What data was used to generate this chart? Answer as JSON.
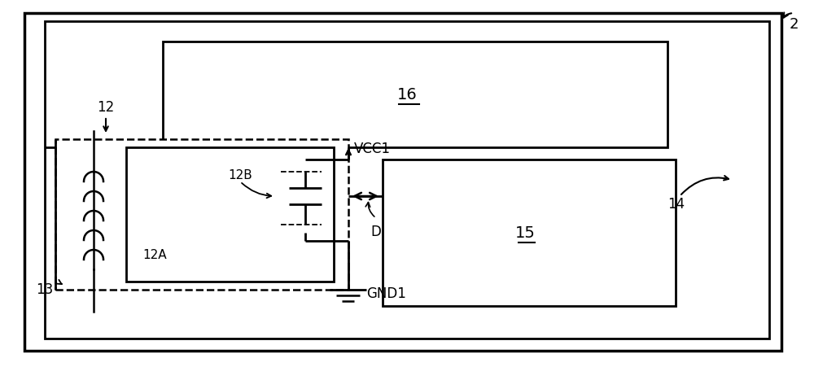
{
  "bg_color": "#ffffff",
  "line_color": "#000000",
  "fig_w": 10.0,
  "fig_h": 4.51,
  "label_2": "2",
  "label_12": "12",
  "label_13": "13",
  "label_14": "14",
  "label_12A": "12A",
  "label_12B": "12B",
  "label_15": "15",
  "label_16": "16",
  "label_VCC1": "VCC1",
  "label_GND1": "GND1",
  "label_D": "D"
}
